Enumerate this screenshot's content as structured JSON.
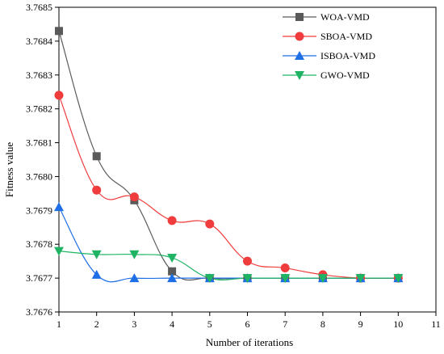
{
  "chart_data": {
    "type": "line",
    "xlabel": "Number of iterations",
    "ylabel": "Fitness value",
    "xlim": [
      1,
      11
    ],
    "ylim": [
      3.7676,
      3.7685
    ],
    "x_ticks": [
      "1",
      "2",
      "3",
      "4",
      "5",
      "6",
      "7",
      "8",
      "9",
      "10",
      "11"
    ],
    "y_ticks": [
      "3.7676",
      "3.7677",
      "3.7678",
      "3.7679",
      "3.7680",
      "3.7681",
      "3.7682",
      "3.7683",
      "3.7684",
      "3.7685"
    ],
    "grid": false,
    "legend_position": "top-right",
    "x": [
      1,
      2,
      3,
      4,
      5,
      6,
      7,
      8,
      9,
      10
    ],
    "series": [
      {
        "name": "WOA-VMD",
        "color": "#5a5a5a",
        "marker": "square",
        "values": [
          3.76843,
          3.76806,
          3.76793,
          3.76772,
          3.7677,
          3.7677,
          3.7677,
          3.7677,
          3.7677,
          3.7677
        ]
      },
      {
        "name": "SBOA-VMD",
        "color": "#f03c3c",
        "marker": "circle",
        "values": [
          3.76824,
          3.76796,
          3.76794,
          3.76787,
          3.76786,
          3.76775,
          3.76773,
          3.76771,
          3.7677,
          3.7677
        ]
      },
      {
        "name": "ISBOA-VMD",
        "color": "#1e6ee6",
        "marker": "triangle-up",
        "values": [
          3.76791,
          3.76771,
          3.7677,
          3.7677,
          3.7677,
          3.7677,
          3.7677,
          3.7677,
          3.7677,
          3.7677
        ]
      },
      {
        "name": "GWO-VMD",
        "color": "#1eb464",
        "marker": "triangle-down",
        "values": [
          3.76778,
          3.76777,
          3.76777,
          3.76776,
          3.7677,
          3.7677,
          3.7677,
          3.7677,
          3.7677,
          3.7677
        ]
      }
    ]
  }
}
